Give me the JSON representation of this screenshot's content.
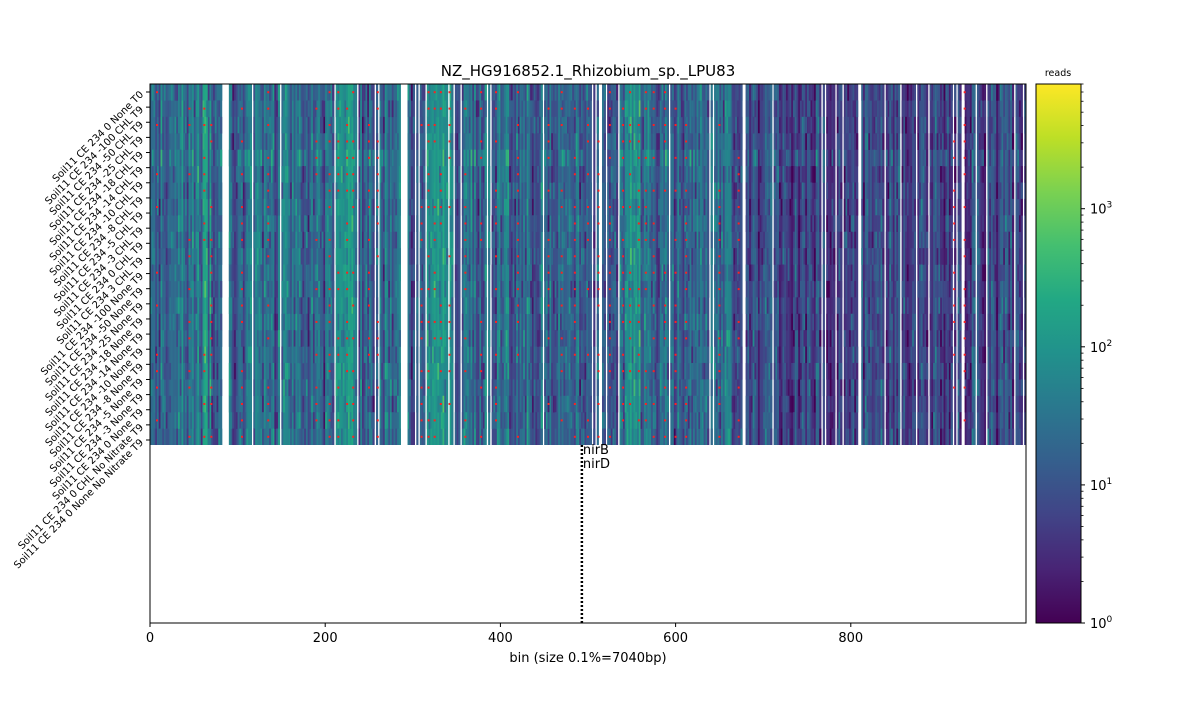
{
  "chart_data": {
    "type": "heatmap",
    "title": "NZ_HG916852.1_Rhizobium_sp._LPU83",
    "xlabel": "bin (size 0.1%=7040bp)",
    "xlim": [
      0,
      1000
    ],
    "x_ticks": [
      0,
      200,
      400,
      600,
      800
    ],
    "color_scale": {
      "type": "log",
      "colormap": "viridis",
      "label": "reads",
      "range": [
        1,
        8000
      ],
      "ticks": [
        {
          "value": 1,
          "base": "10",
          "exp": "0"
        },
        {
          "value": 10,
          "base": "10",
          "exp": "1"
        },
        {
          "value": 100,
          "base": "10",
          "exp": "2"
        },
        {
          "value": 1000,
          "base": "10",
          "exp": "3"
        }
      ]
    },
    "rows": [
      "Soil11 CE 234 0 None T0",
      "Soil11 CE 234 -100 CHL T9",
      "Soil11 CE 234 -50 CHL T9",
      "Soil11 CE 234 -25 CHL T9",
      "Soil11 CE 234 -18 CHL T9",
      "Soil11 CE 234 -14 CHL T9",
      "Soil11 CE 234 -10 CHL T9",
      "Soil11 CE 234 -8 CHL T9",
      "Soil11 CE 234 -5 CHL T9",
      "Soil11 CE 234 -3 CHL T9",
      "Soil11 CE 234 0 CHL T9",
      "Soil11 CE 234 3 CHL T9",
      "Soil11 CE 234 -100 None T9",
      "Soil11 CE 234 -50 None T9",
      "Soil11 CE 234 -25 None T9",
      "Soil11 CE 234 -18 None T9",
      "Soil11 CE 234 -14 None T9",
      "Soil11 CE 234 -10 None T9",
      "Soil11 CE 234 -8 None T9",
      "Soil11 CE 234 -5 None T9",
      "Soil11 CE 234 -3 None T9",
      "Soil11 CE 234 0 None T9",
      "Soil11 CE 234 0 CHL No Nitrate T9",
      "Soil11 CE 234 0 None No Nitrate T9"
    ],
    "annotations": [
      {
        "label": "nirB",
        "x": 493
      },
      {
        "label": "nirD",
        "x": 493
      }
    ]
  }
}
